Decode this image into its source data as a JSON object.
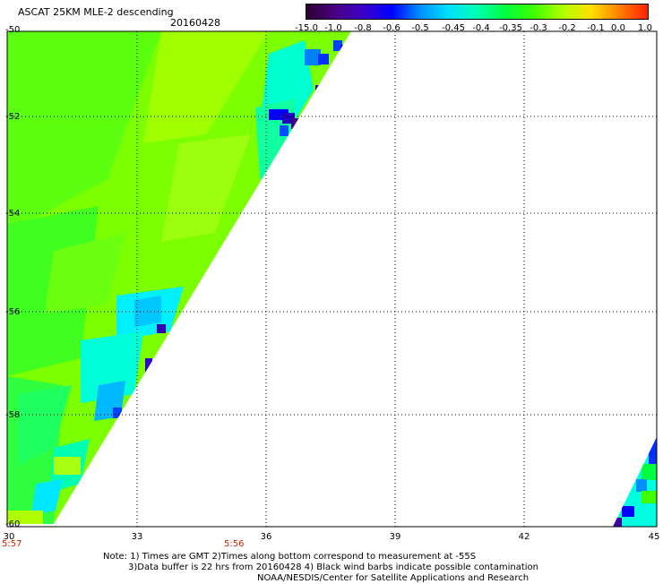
{
  "header": {
    "title": "ASCAT 25KM MLE-2 descending",
    "date": "20160428"
  },
  "colorbar": {
    "labels": [
      "-15.0",
      "-1.0",
      "-0.8",
      "-0.6",
      "-0.5",
      "-0.45",
      "-0.4",
      "-0.35",
      "-0.3",
      "-0.2",
      "-0.1",
      "0.0",
      "1.0"
    ],
    "colors": [
      "#2a0030",
      "#4b0082",
      "#3b00c8",
      "#0000ff",
      "#0090ff",
      "#00e0ff",
      "#00ffb0",
      "#00ff40",
      "#40ff00",
      "#b0ff00",
      "#ffe000",
      "#ff8000",
      "#ff2000"
    ]
  },
  "axes": {
    "y_labels": [
      "-50",
      "-52",
      "-54",
      "-56",
      "-58",
      "-60"
    ],
    "x_labels": [
      "30",
      "33",
      "36",
      "39",
      "42",
      "45"
    ],
    "time_labels": [
      "5:57",
      "5:56"
    ]
  },
  "notes": [
    "Note: 1) Times are GMT 2)Times along bottom correspond to measurement at -55S",
    "3)Data buffer is 22 hrs from 20160428 4) Black wind barbs indicate possible contamination",
    "NOAA/NESDIS/Center for Satellite Applications and Research"
  ]
}
